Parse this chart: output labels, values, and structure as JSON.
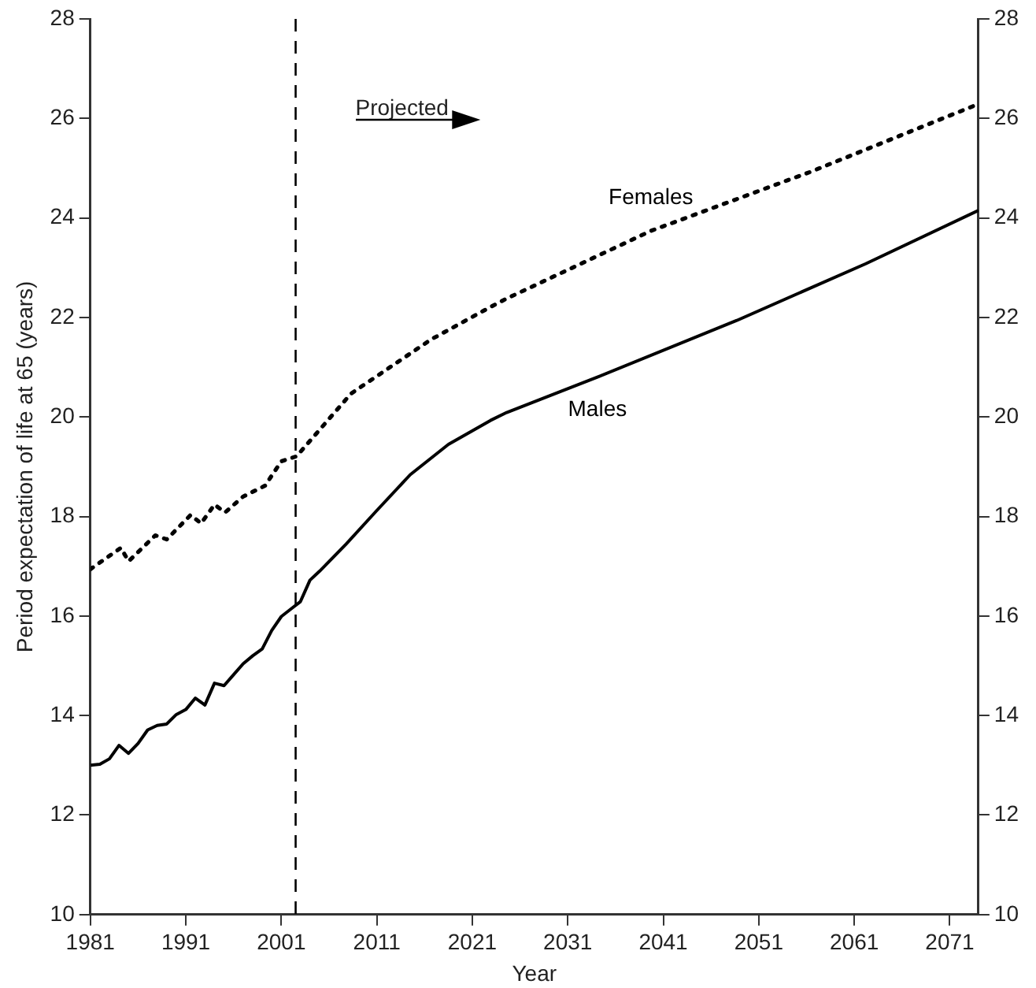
{
  "chart_data": {
    "type": "line",
    "xlabel": "Year",
    "ylabel": "Period expectation of life at 65 (years)",
    "xlim": [
      1981,
      2074
    ],
    "xticks": [
      1981,
      1991,
      2001,
      2011,
      2021,
      2031,
      2041,
      2051,
      2061,
      2071
    ],
    "ylim": [
      10,
      28
    ],
    "yticks": [
      10,
      12,
      14,
      16,
      18,
      20,
      22,
      24,
      26,
      28
    ],
    "y2lim": [
      10,
      28
    ],
    "y2ticks": [
      10,
      12,
      14,
      16,
      18,
      20,
      22,
      24,
      26,
      28
    ],
    "grid": false,
    "legend": false,
    "marker": "none",
    "series": [
      {
        "name": "Females",
        "color": "#000000",
        "line_style": "dotted",
        "x": [
          1981,
          1984.2,
          1985,
          1987.8,
          1989,
          1991.5,
          1992.6,
          1994,
          1995.1,
          1997,
          1999.3,
          2001,
          2002.6,
          2008.3,
          2016.7,
          2022.9,
          2024.6,
          2039.7,
          2056.6,
          2074
        ],
        "values": [
          16.94,
          17.37,
          17.1,
          17.62,
          17.54,
          18.03,
          17.86,
          18.24,
          18.08,
          18.4,
          18.62,
          19.11,
          19.21,
          20.47,
          21.56,
          22.21,
          22.38,
          23.74,
          24.94,
          26.29
        ]
      },
      {
        "name": "Males",
        "color": "#000000",
        "line_style": "solid",
        "x": [
          1981,
          1982,
          1983,
          1984,
          1985,
          1986,
          1987,
          1988,
          1989,
          1990,
          1991,
          1992,
          1993,
          1994,
          1995,
          1996,
          1997,
          1998,
          1999,
          2000,
          2001,
          2002,
          2003,
          2004,
          2005,
          2007.8,
          2010.9,
          2014.5,
          2018.5,
          2022.9,
          2024.6,
          2034.1,
          2048.7,
          2062.2,
          2074
        ],
        "values": [
          13.0,
          13.02,
          13.13,
          13.4,
          13.24,
          13.44,
          13.71,
          13.8,
          13.83,
          14.02,
          14.12,
          14.35,
          14.21,
          14.65,
          14.6,
          14.82,
          15.04,
          15.2,
          15.34,
          15.71,
          15.99,
          16.14,
          16.29,
          16.72,
          16.9,
          17.45,
          18.1,
          18.84,
          19.45,
          19.93,
          20.09,
          20.8,
          21.94,
          23.08,
          24.15
        ]
      }
    ],
    "ref_lines": [
      {
        "axis": "x",
        "value": 2002.5,
        "color": "#000000",
        "line_style": "dashed"
      }
    ],
    "annotations": [
      "Projected"
    ]
  }
}
